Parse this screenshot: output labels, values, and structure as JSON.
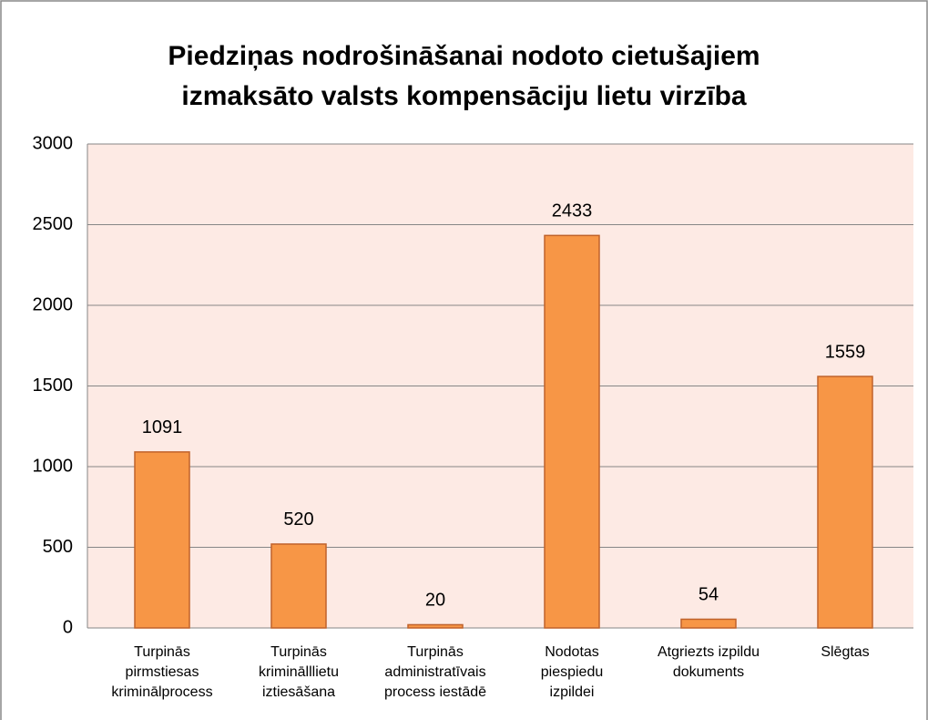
{
  "chart_data": {
    "type": "bar",
    "title": "Piedziņas nodrošināšanai nodoto cietušajiem\nizmaksāto valsts kompensāciju lietu virzība",
    "categories": [
      "Turpinās\npirmstiesas\nkriminālprocess",
      "Turpinās\nkriminālllietu\niztiesāšana",
      "Turpinās\nadministratīvais\nprocess iestādē",
      "Nodotas\npiespiedu\nizpildei",
      "Atgriezts izpildu\ndokuments",
      "Slēgtas"
    ],
    "values": [
      1091,
      520,
      20,
      2433,
      54,
      1559
    ],
    "color": "#f79646",
    "ylim": [
      0,
      3000
    ],
    "yticks": [
      0,
      500,
      1000,
      1500,
      2000,
      2500,
      3000
    ],
    "grid": true
  }
}
